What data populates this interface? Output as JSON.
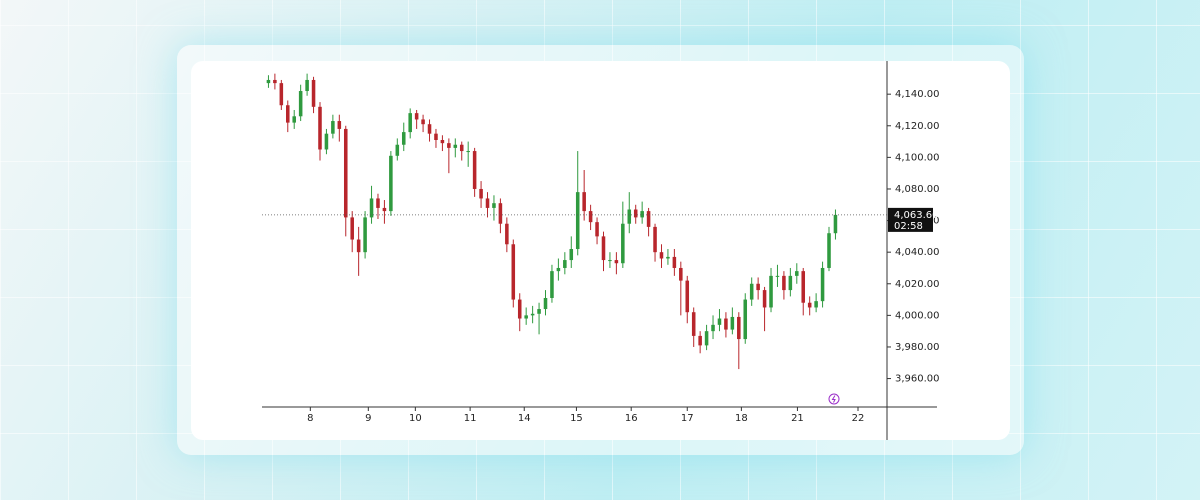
{
  "chart_data": {
    "type": "candlestick",
    "up_color": "#2f9a3f",
    "down_color": "#b8262c",
    "ylim": [
      3942,
      4161
    ],
    "yticks": [
      {
        "value": 3960,
        "label": "3,960.00"
      },
      {
        "value": 3980,
        "label": "3,980.00"
      },
      {
        "value": 4000,
        "label": "4,000.00"
      },
      {
        "value": 4020,
        "label": "4,020.00"
      },
      {
        "value": 4040,
        "label": "4,040.00"
      },
      {
        "value": 4060,
        "label": "4,060.00"
      },
      {
        "value": 4080,
        "label": "4,080.00"
      },
      {
        "value": 4100,
        "label": "4,100.00"
      },
      {
        "value": 4120,
        "label": "4,120.00"
      },
      {
        "value": 4140,
        "label": "4,140.00"
      }
    ],
    "xlim": [
      -1,
      96
    ],
    "xticks": [
      {
        "value": 6.5,
        "label": "8"
      },
      {
        "value": 15.5,
        "label": "9"
      },
      {
        "value": 22.8,
        "label": "10"
      },
      {
        "value": 31.3,
        "label": "11"
      },
      {
        "value": 39.7,
        "label": "14"
      },
      {
        "value": 47.8,
        "label": "15"
      },
      {
        "value": 56.3,
        "label": "16"
      },
      {
        "value": 65,
        "label": "17"
      },
      {
        "value": 73.4,
        "label": "18"
      },
      {
        "value": 82.1,
        "label": "21"
      },
      {
        "value": 91.5,
        "label": "22"
      }
    ],
    "last_price": {
      "value": 4063.6,
      "label": "4,063.60"
    },
    "countdown": "02:58",
    "open": [
      4147,
      4149,
      4147,
      4133,
      4122,
      4126,
      4142,
      4149,
      4132,
      4105,
      4115,
      4123,
      4118,
      4062,
      4048,
      4040,
      4062,
      4074,
      4068,
      4066,
      4101,
      4108,
      4116,
      4128,
      4124,
      4121,
      4115,
      4111,
      4109,
      4106,
      4108,
      4104,
      4104,
      4080,
      4074,
      4068,
      4071,
      4058,
      4045,
      4010,
      3998,
      4000,
      4001,
      4004,
      4011,
      4028,
      4030,
      4035,
      4042,
      4078,
      4066,
      4059,
      4050,
      4035,
      4035,
      4033,
      4058,
      4067,
      4062,
      4066,
      4056,
      4040,
      4036,
      4037,
      4030,
      4022,
      4002,
      3987,
      3981,
      3990,
      3994,
      3998,
      3991,
      3999,
      3985,
      4010,
      4020,
      4016,
      4005,
      4025,
      4025,
      4016,
      4025,
      4028,
      4008,
      4005,
      4009,
      4030,
      4052
    ],
    "high": [
      4152,
      4153,
      4149,
      4136,
      4130,
      4146,
      4153,
      4151,
      4135,
      4118,
      4127,
      4127,
      4120,
      4066,
      4056,
      4066,
      4082,
      4077,
      4073,
      4104,
      4112,
      4122,
      4131,
      4130,
      4127,
      4124,
      4118,
      4114,
      4112,
      4112,
      4110,
      4110,
      4106,
      4085,
      4078,
      4076,
      4074,
      4062,
      4048,
      4014,
      4005,
      4006,
      4008,
      4016,
      4032,
      4036,
      4040,
      4050,
      4104,
      4092,
      4070,
      4062,
      4053,
      4040,
      4040,
      4072,
      4078,
      4070,
      4072,
      4068,
      4058,
      4045,
      4042,
      4042,
      4034,
      4025,
      4005,
      3990,
      3994,
      4000,
      4004,
      4002,
      4005,
      4002,
      4014,
      4024,
      4024,
      4018,
      4030,
      4032,
      4028,
      4030,
      4033,
      4030,
      4012,
      4014,
      4034,
      4056,
      4067
    ],
    "low": [
      4144,
      4143,
      4130,
      4116,
      4118,
      4123,
      4139,
      4128,
      4098,
      4102,
      4112,
      4110,
      4050,
      4040,
      4025,
      4036,
      4058,
      4061,
      4058,
      4063,
      4098,
      4104,
      4112,
      4118,
      4116,
      4110,
      4106,
      4104,
      4090,
      4100,
      4098,
      4094,
      4075,
      4068,
      4062,
      4060,
      4052,
      4040,
      4005,
      3990,
      3994,
      3995,
      3988,
      4000,
      4008,
      4022,
      4026,
      4030,
      4038,
      4060,
      4054,
      4045,
      4028,
      4030,
      4026,
      4030,
      4052,
      4058,
      4058,
      4050,
      4034,
      4030,
      4032,
      4025,
      4000,
      3995,
      3980,
      3976,
      3978,
      3985,
      3990,
      3986,
      3988,
      3966,
      3982,
      4006,
      4010,
      3990,
      4002,
      4018,
      4010,
      4012,
      4020,
      4000,
      4000,
      4002,
      4005,
      4028,
      4048
    ],
    "close": [
      4149,
      4147,
      4133,
      4122,
      4126,
      4142,
      4149,
      4132,
      4105,
      4115,
      4123,
      4118,
      4062,
      4048,
      4040,
      4062,
      4074,
      4068,
      4066,
      4101,
      4108,
      4116,
      4128,
      4124,
      4121,
      4115,
      4111,
      4109,
      4106,
      4108,
      4104,
      4104,
      4080,
      4074,
      4068,
      4071,
      4058,
      4045,
      4010,
      3998,
      4000,
      4001,
      4004,
      4011,
      4028,
      4030,
      4035,
      4042,
      4078,
      4066,
      4059,
      4050,
      4035,
      4035,
      4033,
      4058,
      4067,
      4062,
      4066,
      4056,
      4040,
      4036,
      4037,
      4030,
      4022,
      4002,
      3987,
      3981,
      3990,
      3994,
      3998,
      3991,
      3999,
      3985,
      4010,
      4020,
      4016,
      4005,
      4025,
      4025,
      4016,
      4025,
      4028,
      4008,
      4005,
      4009,
      4030,
      4052,
      4063.6
    ]
  }
}
